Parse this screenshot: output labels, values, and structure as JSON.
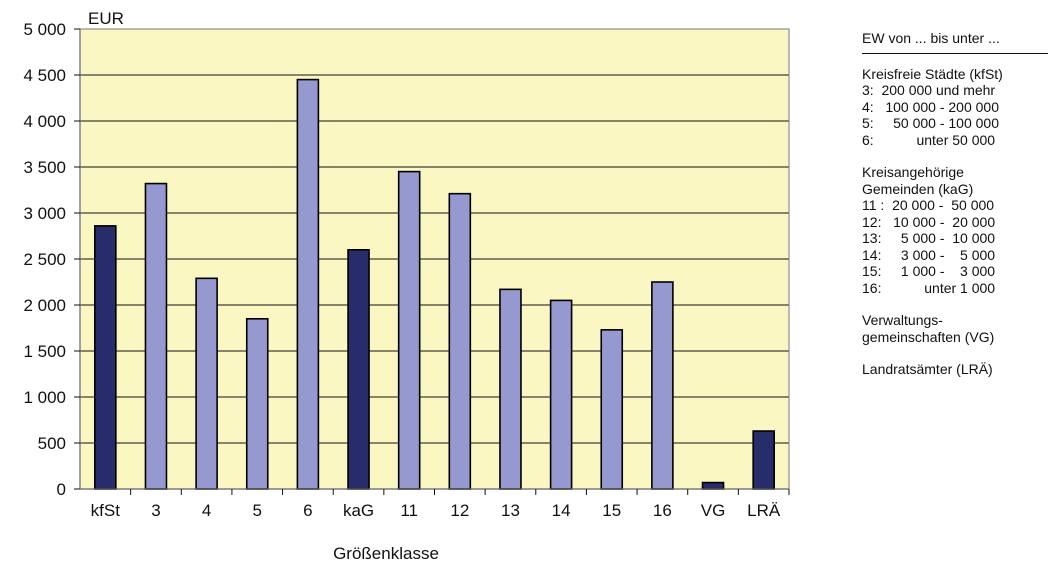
{
  "chart_data": {
    "type": "bar",
    "ylabel": "EUR",
    "xlabel": "Größenklasse",
    "categories": [
      "kfSt",
      "3",
      "4",
      "5",
      "6",
      "kaG",
      "11",
      "12",
      "13",
      "14",
      "15",
      "16",
      "VG",
      "LRÄ"
    ],
    "values": [
      2860,
      3320,
      2290,
      1850,
      4450,
      2600,
      3450,
      3210,
      2170,
      2050,
      1730,
      2250,
      70,
      630
    ],
    "aggregate_categories": [
      "kfSt",
      "kaG",
      "VG",
      "LRÄ"
    ],
    "ylim": [
      0,
      5000
    ],
    "yticks": [
      0,
      500,
      1000,
      1500,
      2000,
      2500,
      3000,
      3500,
      4000,
      4500,
      5000
    ],
    "ytick_labels": [
      "0",
      "500",
      "1 000",
      "1 500",
      "2 000",
      "2 500",
      "3 000",
      "3 500",
      "4 000",
      "4 500",
      "5 000"
    ],
    "grid": true,
    "colors": {
      "plot_background": "#fbf7c3",
      "aggregate_bar": "#272c6b",
      "class_bar": "#9699cf",
      "grid": "#111111"
    }
  },
  "legend": {
    "header": "EW von ... bis unter ...",
    "groups": [
      [
        "Kreisfreie Städte (kfSt)",
        "3:  200 000 und mehr",
        "4:   100 000 - 200 000",
        "5:     50 000 - 100 000",
        "6:           unter 50 000"
      ],
      [
        "Kreisangehörige",
        "Gemeinden (kaG)",
        "11 :  20 000 -  50 000",
        "12:   10 000 -  20 000",
        "13:     5 000 -  10 000",
        "14:     3 000 -    5 000",
        "15:     1 000 -    3 000",
        "16:           unter 1 000"
      ],
      [
        "Verwaltungs-",
        "gemeinschaften (VG)"
      ],
      [
        "Landratsämter (LRÄ)"
      ]
    ]
  }
}
